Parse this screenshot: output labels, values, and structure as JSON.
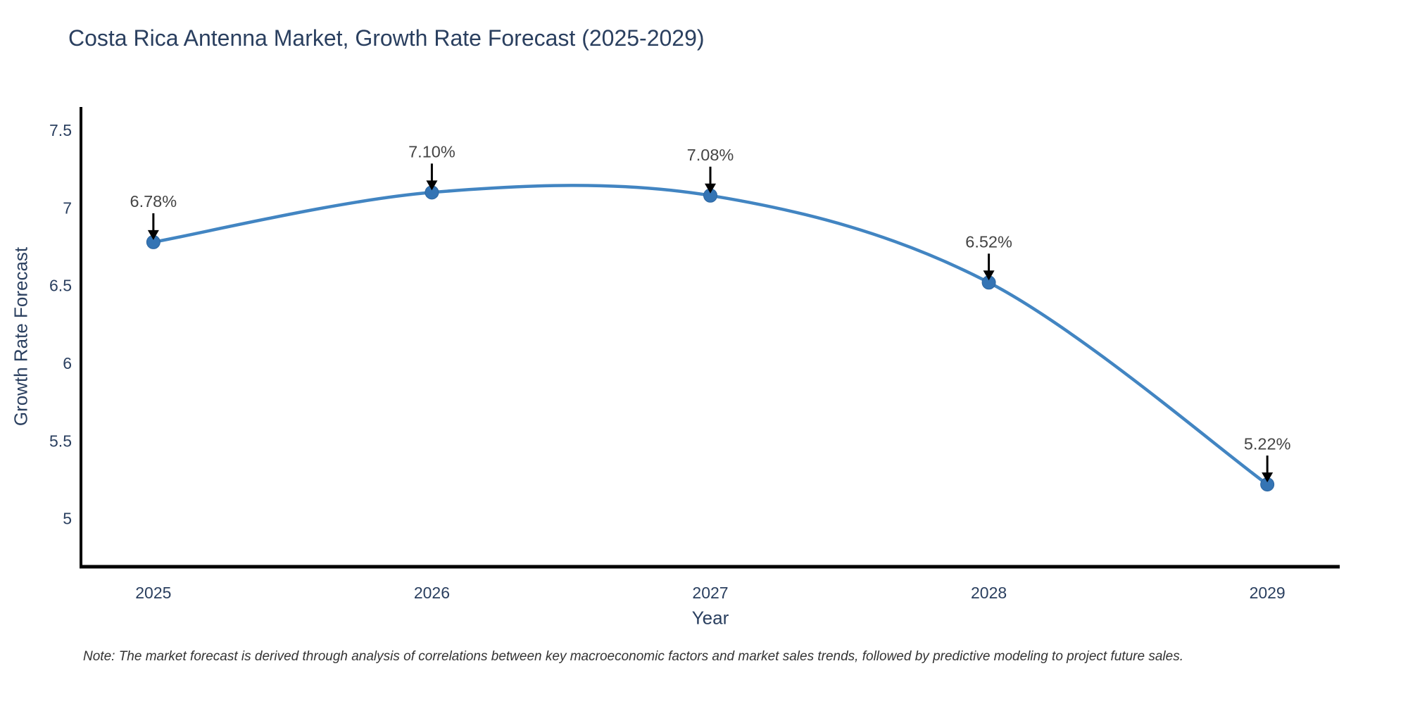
{
  "title": "Costa Rica Antenna Market, Growth Rate Forecast (2025-2029)",
  "note": "Note: The market forecast is derived through analysis of correlations between key macroeconomic factors and market sales trends, followed by predictive modeling to project future sales.",
  "chart_data": {
    "type": "line",
    "title": "Costa Rica Antenna Market, Growth Rate Forecast (2025-2029)",
    "xlabel": "Year",
    "ylabel": "Growth Rate Forecast",
    "x": [
      2025,
      2026,
      2027,
      2028,
      2029
    ],
    "values": [
      6.78,
      7.1,
      7.08,
      6.52,
      5.22
    ],
    "point_labels": [
      "6.78%",
      "7.10%",
      "7.08%",
      "6.52%",
      "5.22%"
    ],
    "xtick_values": [
      2025,
      2026,
      2027,
      2028,
      2029
    ],
    "xtick_labels": [
      "2025",
      "2026",
      "2027",
      "2028",
      "2029"
    ],
    "ytick_values": [
      5,
      5.5,
      6,
      6.5,
      7,
      7.5
    ],
    "ytick_labels": [
      "5",
      "5.5",
      "6",
      "6.5",
      "7",
      "7.5"
    ],
    "xlim": [
      2024.74,
      2029.26
    ],
    "ylim": [
      4.69,
      7.65
    ],
    "grid": false,
    "legend": "none",
    "line_shape": "spline",
    "colors": {
      "line": "#4285c2",
      "marker": "#3474b4",
      "marker_edge": "#2d66a0",
      "axis": "#000000",
      "tick_label": "#2a3f5f",
      "annotation_text": "#444444",
      "annotation_arrow": "#000000"
    }
  }
}
